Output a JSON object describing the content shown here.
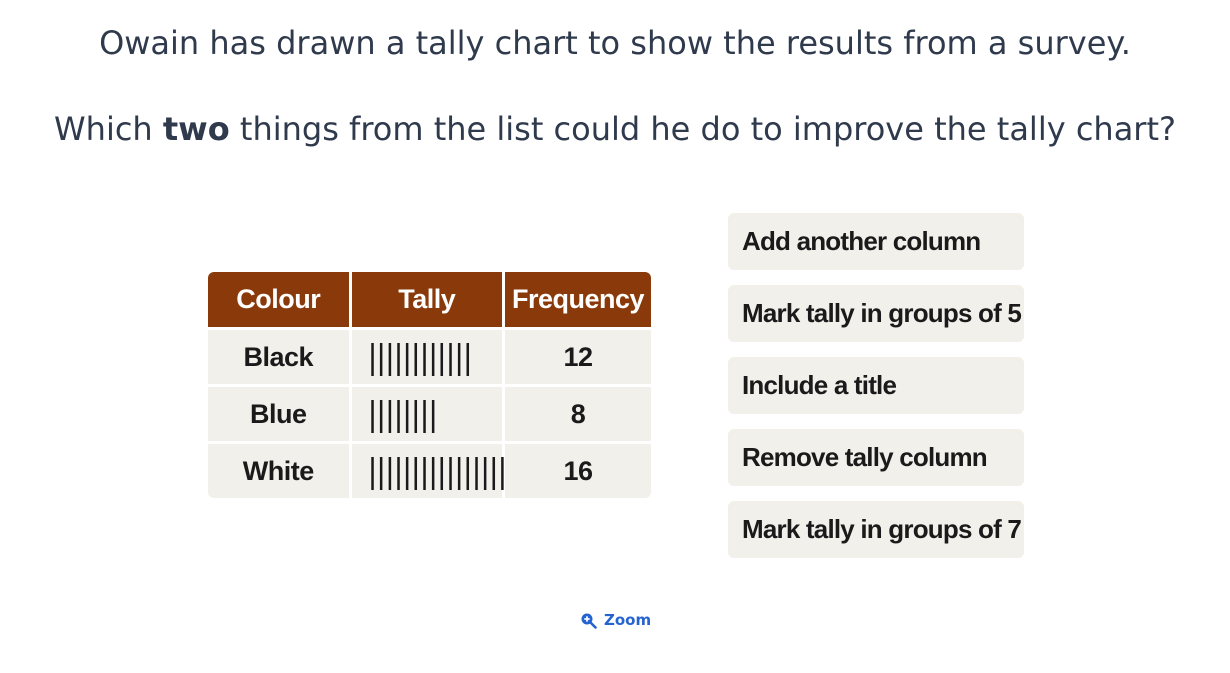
{
  "question": {
    "line1": "Owain has drawn a tally chart to show the results from a survey.",
    "line2_before": "Which ",
    "line2_bold": "two",
    "line2_after": " things from the list could he do to improve the tally chart?"
  },
  "table": {
    "headers": [
      "Colour",
      "Tally",
      "Frequency"
    ],
    "rows": [
      {
        "colour": "Black",
        "tally": "||||||||||||",
        "frequency": "12"
      },
      {
        "colour": "Blue",
        "tally": "||||||||",
        "frequency": "8"
      },
      {
        "colour": "White",
        "tally": "||||||||||||||||",
        "frequency": "16"
      }
    ]
  },
  "options": [
    "Add another column",
    "Mark tally in groups of 5",
    "Include a title",
    "Remove tally column",
    "Mark tally in groups of 7"
  ],
  "zoom": {
    "label": "Zoom",
    "icon": "zoom-in-icon"
  },
  "colors": {
    "header_bg": "#8a3a0a",
    "cell_bg": "#f2f0eb",
    "text": "#2f3a4d",
    "link": "#2563d0"
  }
}
